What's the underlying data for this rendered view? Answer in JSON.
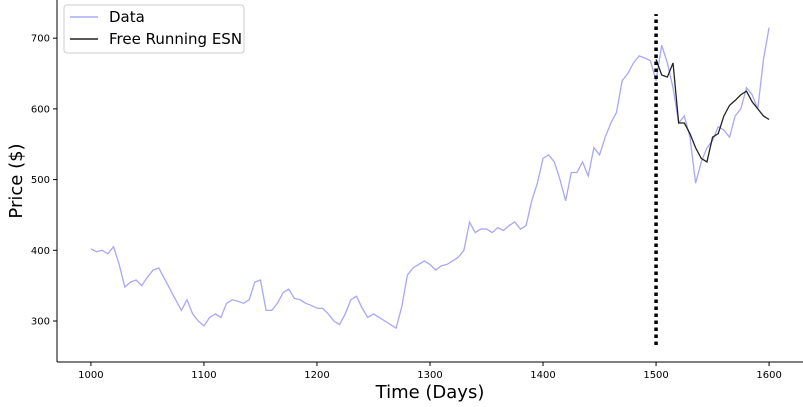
{
  "chart_data": {
    "type": "line",
    "xlabel": "Time (Days)",
    "ylabel": "Price ($)",
    "xlim": [
      970,
      1630
    ],
    "ylim": [
      242,
      754
    ],
    "xticks": [
      1000,
      1100,
      1200,
      1300,
      1400,
      1500,
      1600
    ],
    "yticks": [
      300,
      400,
      500,
      600,
      700
    ],
    "legend": "upper left",
    "vline": {
      "x": 1500,
      "ymin": 266,
      "ymax": 734,
      "color": "#000000",
      "style": "dotted"
    },
    "series": [
      {
        "name": "Data",
        "color": "#a8a8f5",
        "x": [
          1000,
          1005,
          1010,
          1015,
          1020,
          1025,
          1030,
          1035,
          1040,
          1045,
          1050,
          1055,
          1060,
          1065,
          1070,
          1075,
          1080,
          1085,
          1090,
          1095,
          1100,
          1105,
          1110,
          1115,
          1120,
          1125,
          1130,
          1135,
          1140,
          1145,
          1150,
          1155,
          1160,
          1165,
          1170,
          1175,
          1180,
          1185,
          1190,
          1195,
          1200,
          1205,
          1210,
          1215,
          1220,
          1225,
          1230,
          1235,
          1240,
          1245,
          1250,
          1255,
          1260,
          1265,
          1270,
          1275,
          1280,
          1285,
          1290,
          1295,
          1300,
          1305,
          1310,
          1315,
          1320,
          1325,
          1330,
          1335,
          1340,
          1345,
          1350,
          1355,
          1360,
          1365,
          1370,
          1375,
          1380,
          1385,
          1390,
          1395,
          1400,
          1405,
          1410,
          1415,
          1420,
          1425,
          1430,
          1435,
          1440,
          1445,
          1450,
          1455,
          1460,
          1465,
          1470,
          1475,
          1480,
          1485,
          1490,
          1495,
          1500,
          1505,
          1510,
          1515,
          1520,
          1525,
          1530,
          1535,
          1540,
          1545,
          1550,
          1555,
          1560,
          1565,
          1570,
          1575,
          1580,
          1585,
          1590,
          1595,
          1600
        ],
        "values": [
          402,
          398,
          400,
          395,
          405,
          380,
          348,
          355,
          358,
          350,
          362,
          372,
          375,
          360,
          345,
          330,
          315,
          330,
          310,
          300,
          293,
          305,
          310,
          305,
          325,
          330,
          328,
          325,
          330,
          355,
          358,
          315,
          315,
          325,
          340,
          345,
          332,
          330,
          325,
          322,
          318,
          318,
          310,
          300,
          295,
          310,
          330,
          335,
          318,
          305,
          310,
          305,
          300,
          295,
          290,
          320,
          365,
          375,
          380,
          385,
          380,
          372,
          378,
          380,
          385,
          390,
          400,
          440,
          425,
          430,
          430,
          425,
          432,
          428,
          435,
          440,
          430,
          435,
          470,
          495,
          530,
          535,
          525,
          500,
          470,
          510,
          510,
          525,
          505,
          545,
          535,
          560,
          580,
          595,
          640,
          650,
          665,
          675,
          672,
          668,
          640,
          690,
          665,
          630,
          580,
          590,
          560,
          495,
          525,
          545,
          555,
          575,
          570,
          560,
          590,
          600,
          630,
          620,
          600,
          670,
          715
        ]
      },
      {
        "name": "Free Running ESN",
        "color": "#222222",
        "x": [
          1500,
          1505,
          1510,
          1515,
          1520,
          1525,
          1530,
          1535,
          1540,
          1545,
          1550,
          1555,
          1560,
          1565,
          1570,
          1575,
          1580,
          1585,
          1590,
          1595,
          1600
        ],
        "values": [
          670,
          648,
          645,
          665,
          580,
          580,
          565,
          545,
          530,
          525,
          560,
          565,
          590,
          605,
          612,
          620,
          625,
          610,
          600,
          590,
          585
        ]
      }
    ]
  }
}
